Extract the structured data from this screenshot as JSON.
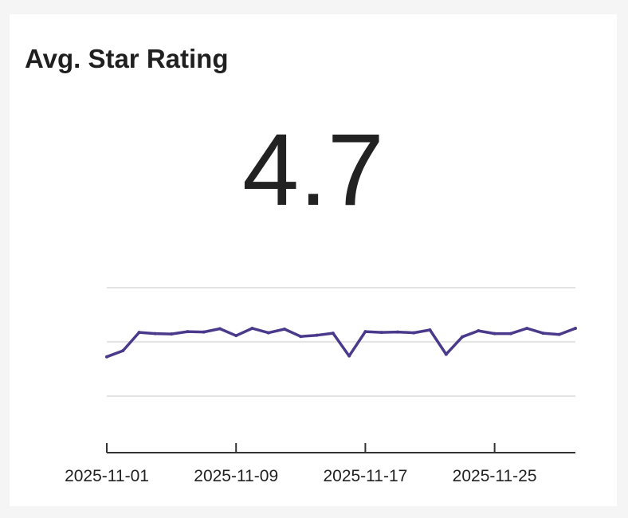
{
  "card": {
    "title": "Avg. Star Rating",
    "value": "4.7"
  },
  "chart_data": {
    "type": "line",
    "grid": true,
    "line_color": "#4b3a8c",
    "grid_color": "#e3e3e3",
    "ylim": [
      4.4,
      4.8
    ],
    "x": [
      "2025-11-01",
      "2025-11-02",
      "2025-11-03",
      "2025-11-04",
      "2025-11-05",
      "2025-11-06",
      "2025-11-07",
      "2025-11-08",
      "2025-11-09",
      "2025-11-10",
      "2025-11-11",
      "2025-11-12",
      "2025-11-13",
      "2025-11-14",
      "2025-11-15",
      "2025-11-16",
      "2025-11-17",
      "2025-11-18",
      "2025-11-19",
      "2025-11-20",
      "2025-11-21",
      "2025-11-22",
      "2025-11-23",
      "2025-11-24",
      "2025-11-25",
      "2025-11-26",
      "2025-11-27",
      "2025-11-28",
      "2025-11-29",
      "2025-11-30"
    ],
    "values": [
      4.63,
      4.645,
      4.69,
      4.687,
      4.686,
      4.692,
      4.691,
      4.699,
      4.682,
      4.7,
      4.689,
      4.698,
      4.68,
      4.683,
      4.688,
      4.632,
      4.692,
      4.69,
      4.691,
      4.689,
      4.696,
      4.636,
      4.679,
      4.694,
      4.687,
      4.687,
      4.7,
      4.688,
      4.685,
      4.7
    ],
    "xticks": [
      "2025-11-01",
      "2025-11-09",
      "2025-11-17",
      "2025-11-25"
    ]
  }
}
